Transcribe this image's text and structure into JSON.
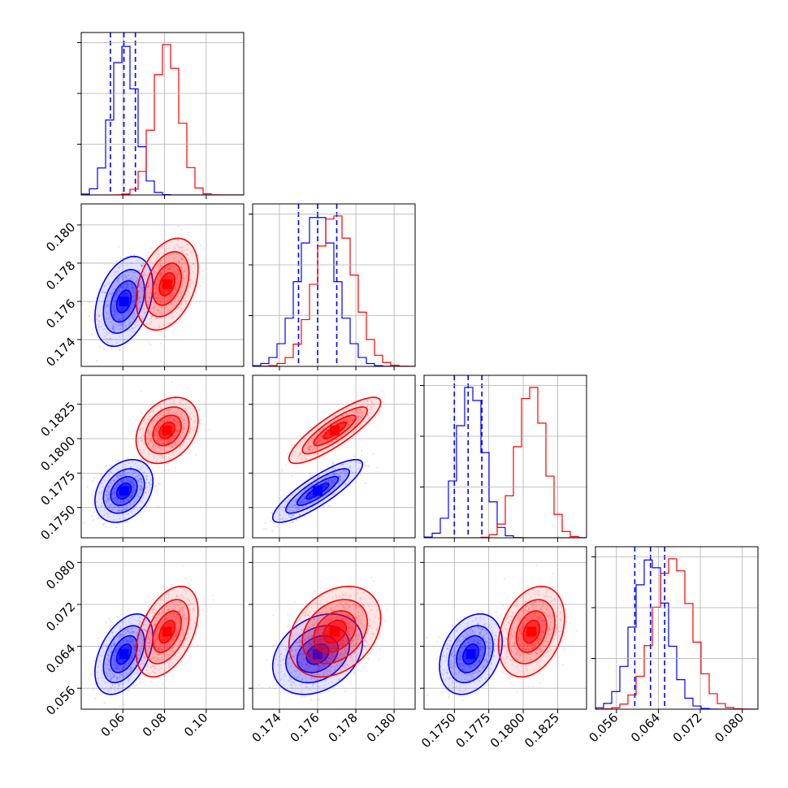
{
  "chart_data": {
    "type": "scatter",
    "title": "",
    "grid": true,
    "legend": "none",
    "colors": {
      "blue": "#0000ff",
      "red": "#ff0000"
    },
    "variables": [
      {
        "index": 0,
        "range": [
          0.04,
          0.118
        ],
        "ticks": [
          "0.06",
          "0.08",
          "0.10"
        ],
        "tick_values": [
          0.06,
          0.08,
          0.1
        ],
        "xlabel": ""
      },
      {
        "index": 1,
        "range": [
          0.1726,
          0.1811
        ],
        "ticks": [
          "0.174",
          "0.176",
          "0.178",
          "0.180"
        ],
        "tick_values": [
          0.174,
          0.176,
          0.178,
          0.18
        ],
        "xlabel": ""
      },
      {
        "index": 2,
        "range": [
          0.1728,
          0.1846
        ],
        "ticks": [
          "0.1750",
          "0.1775",
          "0.1800",
          "0.1825"
        ],
        "tick_values": [
          0.175,
          0.1775,
          0.18,
          0.1825
        ],
        "xlabel": ""
      },
      {
        "index": 3,
        "range": [
          0.052,
          0.083
        ],
        "ticks": [
          "0.056",
          "0.064",
          "0.072",
          "0.080"
        ],
        "tick_values": [
          0.056,
          0.064,
          0.072,
          0.08
        ],
        "xlabel": ""
      }
    ],
    "series": [
      {
        "color": "#0000ff",
        "quantile_lines": true,
        "means": [
          0.0605,
          0.176,
          0.1762,
          0.0625
        ],
        "sds": [
          0.0058,
          0.00098,
          0.00095,
          0.0032
        ],
        "quantiles": [
          [
            0.054,
            0.0605,
            0.066
          ],
          [
            0.175,
            0.176,
            0.177
          ],
          [
            0.175,
            0.176,
            0.177
          ],
          [
            0.0595,
            0.0625,
            0.0652
          ]
        ],
        "correlations": [
          [
            1,
            0.35,
            0.3,
            0.45
          ],
          [
            0.35,
            1,
            0.85,
            0.3
          ],
          [
            0.3,
            0.85,
            1,
            0.3
          ],
          [
            0.45,
            0.3,
            0.3,
            1
          ]
        ]
      },
      {
        "color": "#ff0000",
        "quantile_lines": false,
        "means": [
          0.0812,
          0.1769,
          0.1806,
          0.0668
        ],
        "sds": [
          0.0062,
          0.001,
          0.001,
          0.0036
        ],
        "quantiles": [],
        "correlations": [
          [
            1,
            0.35,
            0.3,
            0.45
          ],
          [
            0.35,
            1,
            0.85,
            0.3
          ],
          [
            0.3,
            0.85,
            1,
            0.3
          ],
          [
            0.45,
            0.3,
            0.3,
            1
          ]
        ]
      }
    ]
  }
}
